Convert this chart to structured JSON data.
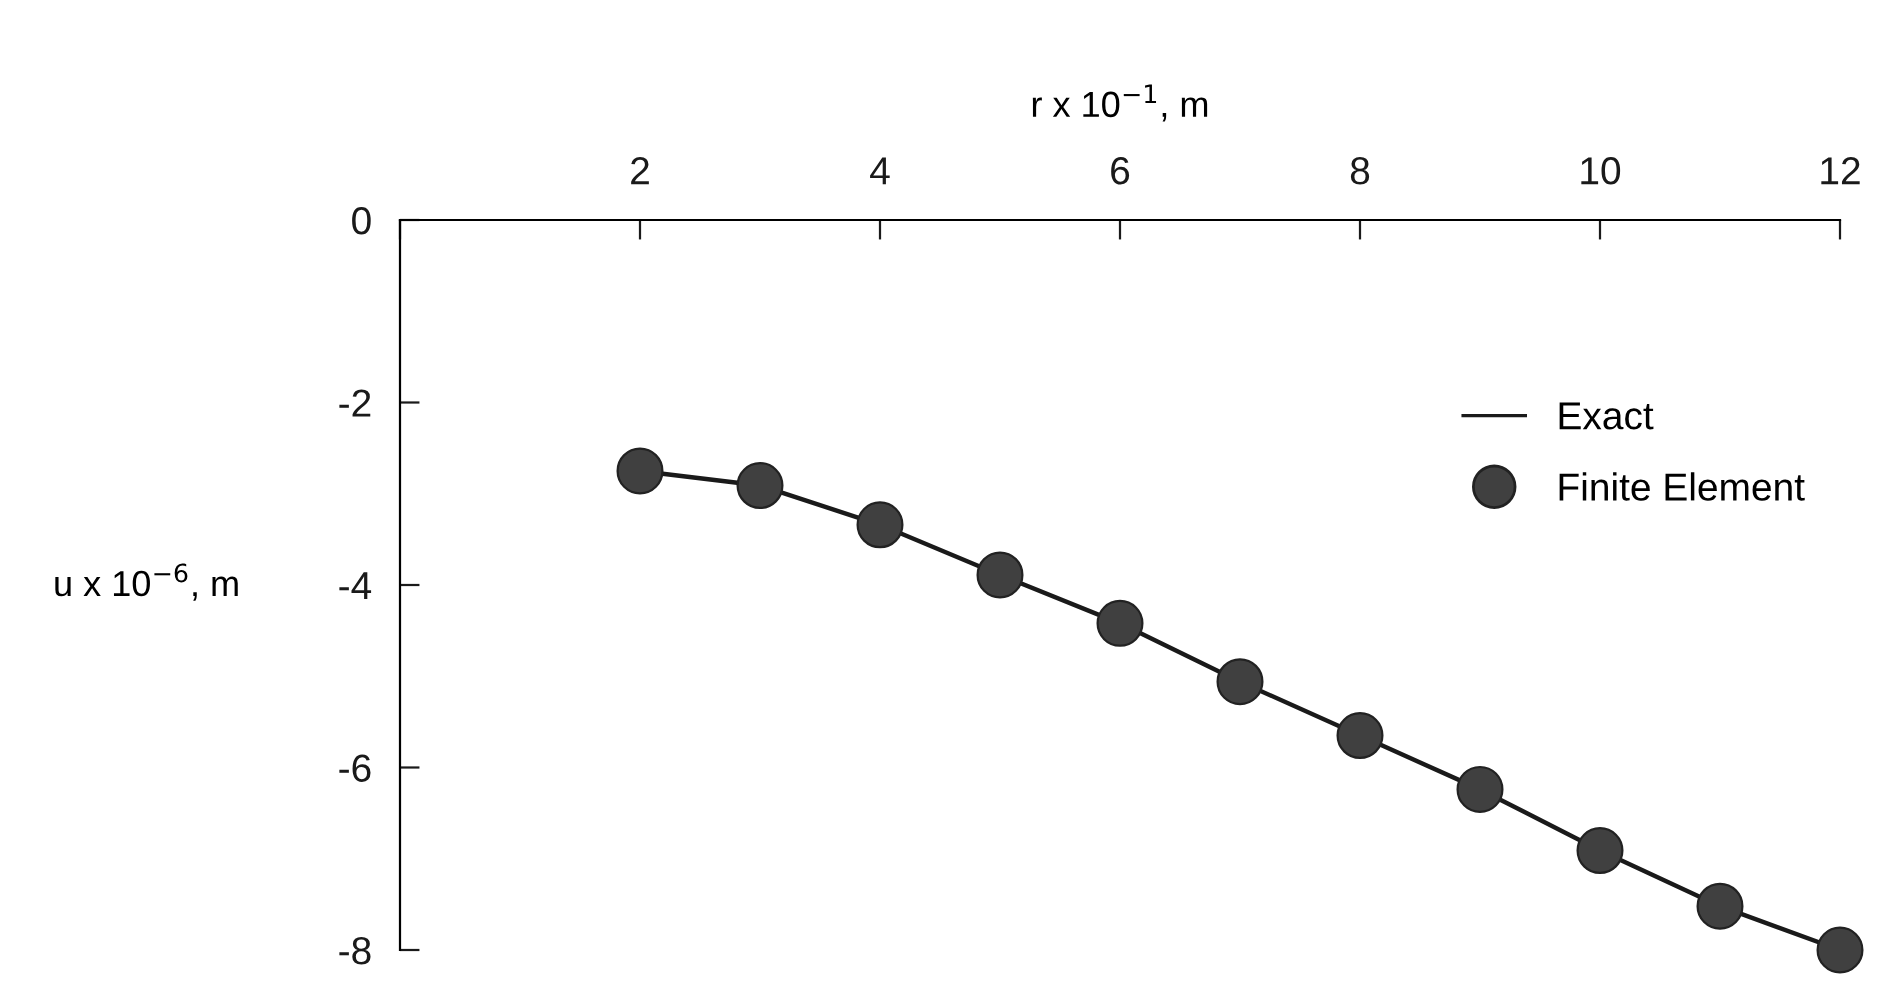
{
  "chart_data": {
    "type": "line",
    "xlabel": "r x 10$^{−1}$, m",
    "ylabel": "u x 10$^{−6}$, m",
    "xlim": [
      0,
      12
    ],
    "xticks": [
      {
        "value": 0,
        "label": null
      },
      2,
      4,
      6,
      8,
      10,
      12
    ],
    "ylim": [
      -8,
      0
    ],
    "yticks": [
      0,
      -2,
      -4,
      -6,
      -8
    ],
    "grid": false,
    "legend": "top right",
    "series": [
      {
        "name": "Exact",
        "color": "#1a1a1a",
        "line_style": "solid",
        "marker": "none",
        "x": [
          2,
          3,
          4,
          5,
          6,
          7,
          8,
          9,
          10,
          11,
          12
        ],
        "values": [
          -2.75,
          -2.91,
          -3.34,
          -3.89,
          -4.42,
          -5.06,
          -5.65,
          -6.24,
          -6.91,
          -7.52,
          -8.0
        ]
      },
      {
        "name": "Finite Element",
        "type": "scatter",
        "color": "#404040",
        "marker": "circle",
        "x": [
          2,
          3,
          4,
          5,
          6,
          7,
          8,
          9,
          10,
          11,
          12
        ],
        "values": [
          -2.75,
          -2.91,
          -3.34,
          -3.89,
          -4.42,
          -5.06,
          -5.65,
          -6.24,
          -6.91,
          -7.52,
          -8.0
        ]
      }
    ]
  }
}
